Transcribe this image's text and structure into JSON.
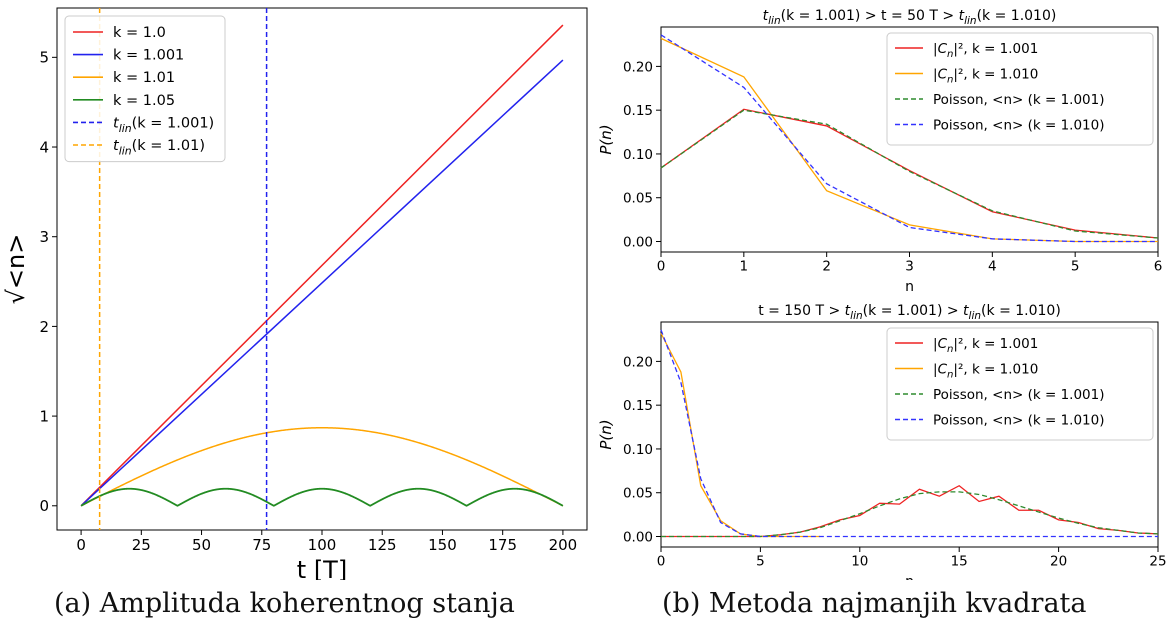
{
  "captions": {
    "a": "(a) Amplituda koherentnog stanja",
    "b": "(b) Metoda najmanjih kvadrata"
  },
  "colors": {
    "red": "#ee2222",
    "blue": "#2222ee",
    "orange": "#ffa500",
    "green": "#228b22",
    "green_dash": "#2e8b2e",
    "blue_dash": "#3333ff"
  },
  "chart_data": [
    {
      "type": "line",
      "panel": "a",
      "xlabel": "t [T]",
      "ylabel": "√<n>",
      "xlim": [
        -10,
        210
      ],
      "ylim": [
        -0.27,
        5.55
      ],
      "xticks": [
        0,
        25,
        50,
        75,
        100,
        125,
        150,
        175,
        200
      ],
      "yticks": [
        0,
        1,
        2,
        3,
        4,
        5
      ],
      "grid": false,
      "legend_position": "top-left",
      "series": [
        {
          "name": "k = 1.0",
          "color": "red",
          "style": "solid",
          "kind": "linear",
          "x": [
            0,
            200
          ],
          "y": [
            0,
            5.36
          ]
        },
        {
          "name": "k = 1.001",
          "color": "blue",
          "style": "solid",
          "kind": "linear",
          "x": [
            0,
            200
          ],
          "y": [
            0,
            4.97
          ]
        },
        {
          "name": "k = 1.01",
          "color": "orange",
          "style": "solid",
          "kind": "abs-sine",
          "x_range": [
            0,
            200
          ],
          "amplitude": 0.87,
          "period": 200
        },
        {
          "name": "k = 1.05",
          "color": "green",
          "style": "solid",
          "kind": "abs-sine",
          "x_range": [
            0,
            200
          ],
          "amplitude": 0.19,
          "period": 40
        },
        {
          "name": "t_lin(k = 1.001)",
          "color": "blue",
          "style": "dashed",
          "kind": "vline",
          "x": 77
        },
        {
          "name": "t_lin(k = 1.01)",
          "color": "orange",
          "style": "dashed",
          "kind": "vline",
          "x": 7.7
        }
      ]
    },
    {
      "type": "line",
      "panel": "b-top",
      "title": "t_lin(k = 1.001) > t = 50 T > t_lin(k = 1.010)",
      "xlabel": "n",
      "ylabel": "P(n)",
      "xlim": [
        0,
        6
      ],
      "ylim": [
        -0.012,
        0.245
      ],
      "xticks": [
        0,
        1,
        2,
        3,
        4,
        5,
        6
      ],
      "yticks": [
        0.0,
        0.05,
        0.1,
        0.15,
        0.2
      ],
      "legend_position": "top-right",
      "series": [
        {
          "name": "|C_n|², k = 1.001",
          "color": "red",
          "style": "solid",
          "x": [
            0,
            1,
            2,
            3,
            4,
            5,
            6
          ],
          "y": [
            0.084,
            0.151,
            0.132,
            0.081,
            0.034,
            0.013,
            0.004
          ]
        },
        {
          "name": "|C_n|², k = 1.010",
          "color": "orange",
          "style": "solid",
          "x": [
            0,
            1,
            2,
            3,
            4,
            5,
            6
          ],
          "y": [
            0.232,
            0.188,
            0.058,
            0.019,
            0.003,
            0.0,
            0.0
          ]
        },
        {
          "name": "Poisson, <n> (k = 1.001)",
          "color": "green_dash",
          "style": "dashed",
          "x": [
            0,
            1,
            2,
            3,
            4,
            5,
            6
          ],
          "y": [
            0.084,
            0.15,
            0.134,
            0.08,
            0.035,
            0.012,
            0.004
          ]
        },
        {
          "name": "Poisson, <n> (k = 1.010)",
          "color": "blue_dash",
          "style": "dashed",
          "x": [
            0,
            1,
            2,
            3,
            4,
            5,
            6
          ],
          "y": [
            0.236,
            0.176,
            0.066,
            0.016,
            0.003,
            0.0,
            0.0
          ]
        }
      ]
    },
    {
      "type": "line",
      "panel": "b-bottom",
      "title": "t = 150 T > t_lin(k = 1.001) > t_lin(k = 1.010)",
      "xlabel": "n",
      "ylabel": "P(n)",
      "xlim": [
        0,
        25
      ],
      "ylim": [
        -0.012,
        0.245
      ],
      "xticks": [
        0,
        5,
        10,
        15,
        20,
        25
      ],
      "yticks": [
        0.0,
        0.05,
        0.1,
        0.15,
        0.2
      ],
      "legend_position": "top-right",
      "series": [
        {
          "name": "|C_n|², k = 1.001",
          "color": "red",
          "style": "solid",
          "x": [
            0,
            1,
            2,
            3,
            4,
            5,
            6,
            7,
            8,
            9,
            10,
            11,
            12,
            13,
            14,
            15,
            16,
            17,
            18,
            19,
            20,
            21,
            22,
            23,
            24,
            25
          ],
          "y": [
            0.0,
            0.0,
            0.0,
            0.0,
            0.0,
            0.0,
            0.002,
            0.005,
            0.011,
            0.019,
            0.024,
            0.038,
            0.037,
            0.054,
            0.046,
            0.058,
            0.04,
            0.046,
            0.03,
            0.03,
            0.019,
            0.016,
            0.009,
            0.007,
            0.004,
            0.003
          ]
        },
        {
          "name": "|C_n|², k = 1.010",
          "color": "orange",
          "style": "solid",
          "x": [
            0,
            1,
            2,
            3,
            4,
            5,
            6,
            7,
            8
          ],
          "y": [
            0.232,
            0.188,
            0.058,
            0.018,
            0.003,
            0.0,
            0.0,
            0.0,
            0.0
          ]
        },
        {
          "name": "Poisson, <n> (k = 1.001)",
          "color": "green_dash",
          "style": "dashed",
          "x": [
            0,
            1,
            2,
            3,
            4,
            5,
            6,
            7,
            8,
            9,
            10,
            11,
            12,
            13,
            14,
            15,
            16,
            17,
            18,
            19,
            20,
            21,
            22,
            23,
            24,
            25
          ],
          "y": [
            0.0,
            0.0,
            0.0,
            0.0,
            0.0,
            0.0,
            0.002,
            0.005,
            0.01,
            0.018,
            0.026,
            0.035,
            0.043,
            0.049,
            0.051,
            0.051,
            0.048,
            0.042,
            0.035,
            0.028,
            0.021,
            0.015,
            0.01,
            0.007,
            0.004,
            0.003
          ]
        },
        {
          "name": "Poisson, <n> (k = 1.010)",
          "color": "blue_dash",
          "style": "dashed",
          "x": [
            0,
            1,
            2,
            3,
            4,
            5,
            6,
            7,
            8,
            9,
            10,
            11,
            12,
            13,
            14,
            15,
            16,
            17,
            18,
            19,
            20,
            21,
            22,
            23,
            24,
            25
          ],
          "y": [
            0.236,
            0.176,
            0.066,
            0.016,
            0.003,
            0.0,
            0.0,
            0.0,
            0.0,
            0.0,
            0.0,
            0.0,
            0.0,
            0.0,
            0.0,
            0.0,
            0.0,
            0.0,
            0.0,
            0.0,
            0.0,
            0.0,
            0.0,
            0.0,
            0.0,
            0.0
          ]
        }
      ]
    }
  ]
}
